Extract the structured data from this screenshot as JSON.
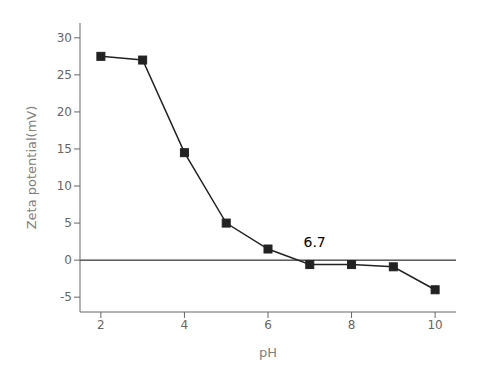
{
  "chart_data": {
    "type": "line",
    "x": [
      2,
      3,
      4,
      5,
      6,
      7,
      8,
      9,
      10
    ],
    "values": [
      27.5,
      27.0,
      14.5,
      5.0,
      1.5,
      -0.6,
      -0.6,
      -0.9,
      -4.0
    ],
    "xlim": [
      1.5,
      10.5
    ],
    "ylim": [
      -7,
      32
    ],
    "xticks": [
      2,
      4,
      6,
      8,
      10
    ],
    "yticks": [
      -5,
      0,
      5,
      10,
      15,
      20,
      25,
      30
    ],
    "xlabel": "pH",
    "ylabel": "Zeta potential(mV)",
    "color": "#222222",
    "marker": "square",
    "line_style": "solid",
    "grid": false,
    "hline": 0,
    "annotations": [
      {
        "text": "6.7",
        "x": 6.85,
        "y": 1.8
      }
    ]
  }
}
